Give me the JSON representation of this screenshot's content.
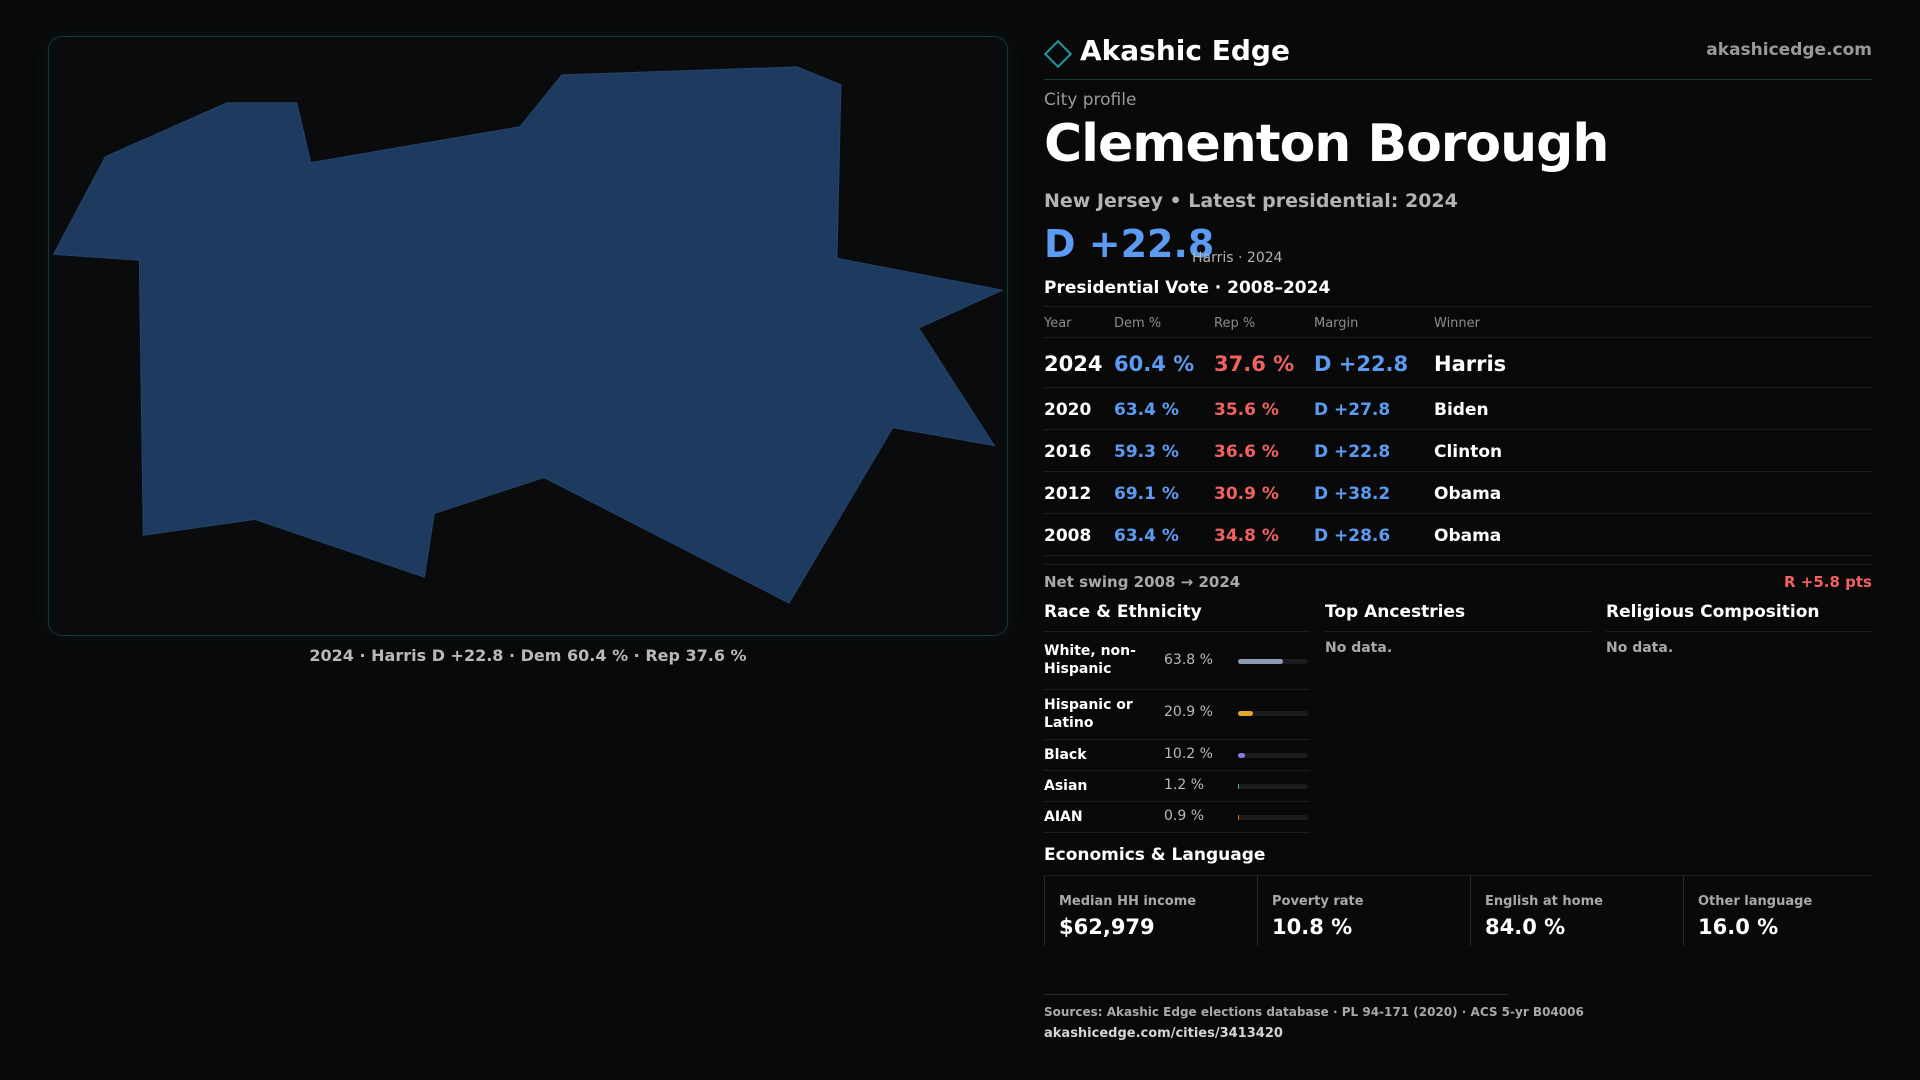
{
  "brand": {
    "name": "Akashic Edge",
    "url": "akashicedge.com"
  },
  "profile": {
    "eyebrow": "City profile",
    "city": "Clementon Borough",
    "subtitle": "New Jersey • Latest presidential: 2024",
    "margin": "D +22.8",
    "margin_note": "Harris · 2024"
  },
  "map": {
    "caption": "2024 · Harris D +22.8 · Dem 60.4 % · Rep 37.6 %",
    "fill_color": "#1f3a5f"
  },
  "vote": {
    "title": "Presidential Vote · 2008–2024",
    "headers": {
      "year": "Year",
      "dem": "Dem %",
      "rep": "Rep %",
      "margin": "Margin",
      "winner": "Winner"
    },
    "rows": [
      {
        "year": "2024",
        "dem": "60.4 %",
        "rep": "37.6 %",
        "margin": "D +22.8",
        "winner": "Harris"
      },
      {
        "year": "2020",
        "dem": "63.4 %",
        "rep": "35.6 %",
        "margin": "D +27.8",
        "winner": "Biden"
      },
      {
        "year": "2016",
        "dem": "59.3 %",
        "rep": "36.6 %",
        "margin": "D +22.8",
        "winner": "Clinton"
      },
      {
        "year": "2012",
        "dem": "69.1 %",
        "rep": "30.9 %",
        "margin": "D +38.2",
        "winner": "Obama"
      },
      {
        "year": "2008",
        "dem": "63.4 %",
        "rep": "34.8 %",
        "margin": "D +28.6",
        "winner": "Obama"
      }
    ],
    "swing_label": "Net swing 2008 → 2024",
    "swing_value": "R +5.8 pts"
  },
  "race": {
    "title": "Race & Ethnicity",
    "rows": [
      {
        "label": "White, non-Hispanic",
        "pct": "63.8 %",
        "value": 63.8,
        "color": "#8f9bb3"
      },
      {
        "label": "Hispanic or Latino",
        "pct": "20.9 %",
        "value": 20.9,
        "color": "#e0a52a"
      },
      {
        "label": "Black",
        "pct": "10.2 %",
        "value": 10.2,
        "color": "#8a78e0"
      },
      {
        "label": "Asian",
        "pct": "1.2 %",
        "value": 1.2,
        "color": "#3fc1a0"
      },
      {
        "label": "AIAN",
        "pct": "0.9 %",
        "value": 0.9,
        "color": "#e0782a"
      }
    ]
  },
  "ancestries": {
    "title": "Top Ancestries",
    "empty": "No data."
  },
  "religion": {
    "title": "Religious Composition",
    "empty": "No data."
  },
  "economics": {
    "title": "Economics & Language",
    "items": [
      {
        "label": "Median HH income",
        "value": "$62,979"
      },
      {
        "label": "Poverty rate",
        "value": "10.8 %"
      },
      {
        "label": "English at home",
        "value": "84.0 %"
      },
      {
        "label": "Other language",
        "value": "16.0 %"
      }
    ]
  },
  "footer": {
    "sources": "Sources: Akashic Edge elections database · PL 94-171 (2020) · ACS 5-yr B04006",
    "url": "akashicedge.com/cities/3413420"
  }
}
